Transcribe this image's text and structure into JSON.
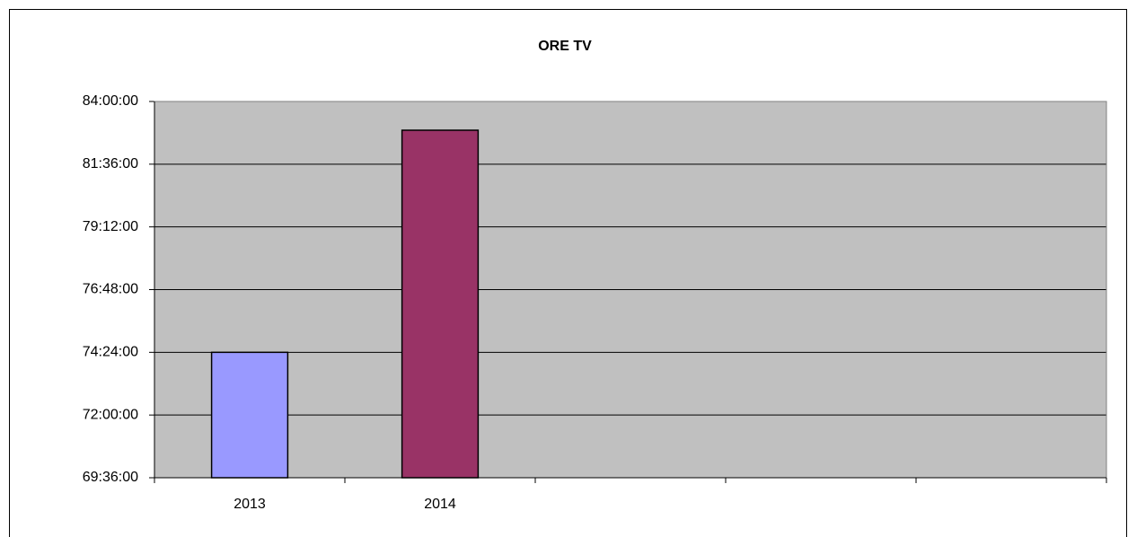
{
  "chart_data": {
    "type": "bar",
    "title": "ORE TV",
    "categories": [
      "2013",
      "2014",
      null,
      null,
      null
    ],
    "values": [
      74.4,
      82.9,
      null,
      null,
      null
    ],
    "colors": [
      "#9999ff",
      "#993366",
      null,
      null,
      null
    ],
    "plot_background": "#c0c0c0",
    "ylim": [
      69.6,
      84
    ],
    "yticks": [
      {
        "value": 69.6,
        "label": "69:36:00"
      },
      {
        "value": 72,
        "label": "72:00:00"
      },
      {
        "value": 74.4,
        "label": "74:24:00"
      },
      {
        "value": 76.8,
        "label": "76:48:00"
      },
      {
        "value": 79.2,
        "label": "79:12:00"
      },
      {
        "value": 81.6,
        "label": "81:36:00"
      },
      {
        "value": 84,
        "label": "84:00:00"
      }
    ],
    "grid": true
  }
}
